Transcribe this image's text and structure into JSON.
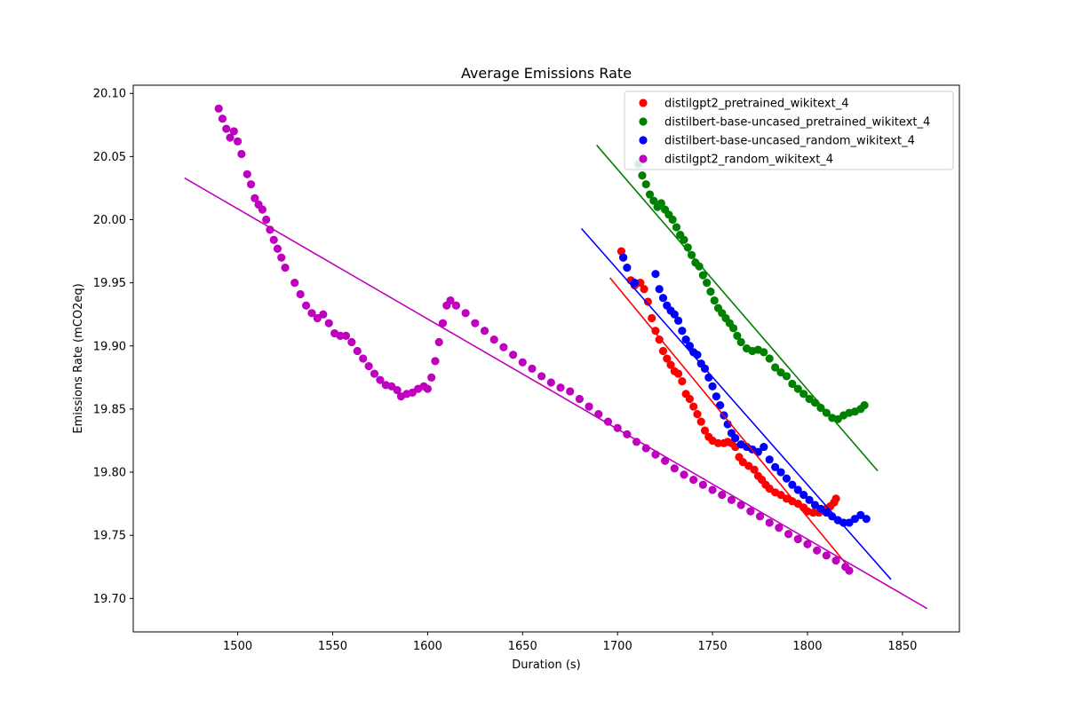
{
  "chart_data": {
    "type": "scatter",
    "title": "Average Emissions Rate",
    "xlabel": "Duration (s)",
    "ylabel": "Emissions Rate (mCO2eq)",
    "xlim": [
      1445,
      1880
    ],
    "ylim": [
      19.6735,
      20.1065
    ],
    "xticks": [
      1500,
      1550,
      1600,
      1650,
      1700,
      1750,
      1800,
      1850
    ],
    "yticks": [
      19.7,
      19.75,
      19.8,
      19.85,
      19.9,
      19.95,
      20.0,
      20.05,
      20.1
    ],
    "legend_position": "top-right",
    "grid": false,
    "series": [
      {
        "name": "distilgpt2_pretrained_wikitext_4",
        "color": "#ff0000",
        "points": [
          [
            1702,
            19.975
          ],
          [
            1703,
            19.97
          ],
          [
            1707,
            19.952
          ],
          [
            1709,
            19.948
          ],
          [
            1712,
            19.95
          ],
          [
            1714,
            19.945
          ],
          [
            1716,
            19.935
          ],
          [
            1718,
            19.922
          ],
          [
            1720,
            19.912
          ],
          [
            1722,
            19.905
          ],
          [
            1724,
            19.896
          ],
          [
            1726,
            19.89
          ],
          [
            1728,
            19.885
          ],
          [
            1730,
            19.88
          ],
          [
            1732,
            19.878
          ],
          [
            1734,
            19.872
          ],
          [
            1736,
            19.862
          ],
          [
            1738,
            19.858
          ],
          [
            1740,
            19.852
          ],
          [
            1742,
            19.846
          ],
          [
            1744,
            19.84
          ],
          [
            1746,
            19.833
          ],
          [
            1748,
            19.828
          ],
          [
            1750,
            19.825
          ],
          [
            1753,
            19.823
          ],
          [
            1756,
            19.823
          ],
          [
            1758,
            19.824
          ],
          [
            1760,
            19.823
          ],
          [
            1762,
            19.82
          ],
          [
            1764,
            19.812
          ],
          [
            1766,
            19.808
          ],
          [
            1769,
            19.805
          ],
          [
            1772,
            19.802
          ],
          [
            1774,
            19.797
          ],
          [
            1776,
            19.794
          ],
          [
            1778,
            19.79
          ],
          [
            1780,
            19.787
          ],
          [
            1783,
            19.784
          ],
          [
            1786,
            19.782
          ],
          [
            1789,
            19.779
          ],
          [
            1792,
            19.777
          ],
          [
            1795,
            19.775
          ],
          [
            1798,
            19.772
          ],
          [
            1800,
            19.769
          ],
          [
            1803,
            19.768
          ],
          [
            1806,
            19.768
          ],
          [
            1808,
            19.77
          ],
          [
            1810,
            19.771
          ],
          [
            1812,
            19.773
          ],
          [
            1814,
            19.776
          ],
          [
            1815,
            19.779
          ]
        ],
        "fit_line": {
          "x": [
            1696,
            1820
          ],
          "y": [
            19.954,
            19.728
          ]
        }
      },
      {
        "name": "distilbert-base-uncased_pretrained_wikitext_4",
        "color": "#008000",
        "points": [
          [
            1711,
            20.044
          ],
          [
            1713,
            20.035
          ],
          [
            1715,
            20.028
          ],
          [
            1717,
            20.02
          ],
          [
            1719,
            20.015
          ],
          [
            1721,
            20.01
          ],
          [
            1723,
            20.013
          ],
          [
            1725,
            20.008
          ],
          [
            1727,
            20.004
          ],
          [
            1729,
            20.0
          ],
          [
            1731,
            19.994
          ],
          [
            1733,
            19.988
          ],
          [
            1735,
            19.984
          ],
          [
            1737,
            19.978
          ],
          [
            1739,
            19.972
          ],
          [
            1741,
            19.966
          ],
          [
            1743,
            19.963
          ],
          [
            1745,
            19.956
          ],
          [
            1747,
            19.95
          ],
          [
            1749,
            19.943
          ],
          [
            1751,
            19.936
          ],
          [
            1753,
            19.93
          ],
          [
            1755,
            19.926
          ],
          [
            1757,
            19.922
          ],
          [
            1759,
            19.918
          ],
          [
            1761,
            19.914
          ],
          [
            1763,
            19.908
          ],
          [
            1765,
            19.903
          ],
          [
            1768,
            19.898
          ],
          [
            1771,
            19.896
          ],
          [
            1774,
            19.897
          ],
          [
            1777,
            19.895
          ],
          [
            1780,
            19.89
          ],
          [
            1783,
            19.883
          ],
          [
            1786,
            19.879
          ],
          [
            1789,
            19.876
          ],
          [
            1792,
            19.87
          ],
          [
            1795,
            19.866
          ],
          [
            1798,
            19.862
          ],
          [
            1801,
            19.858
          ],
          [
            1804,
            19.855
          ],
          [
            1807,
            19.851
          ],
          [
            1810,
            19.847
          ],
          [
            1813,
            19.843
          ],
          [
            1816,
            19.842
          ],
          [
            1819,
            19.845
          ],
          [
            1822,
            19.847
          ],
          [
            1825,
            19.848
          ],
          [
            1828,
            19.85
          ],
          [
            1830,
            19.853
          ]
        ],
        "fit_line": {
          "x": [
            1689,
            1837
          ],
          "y": [
            20.059,
            19.801
          ]
        }
      },
      {
        "name": "distilbert-base-uncased_random_wikitext_4",
        "color": "#0000ff",
        "points": [
          [
            1703,
            19.97
          ],
          [
            1705,
            19.962
          ],
          [
            1709,
            19.95
          ],
          [
            1720,
            19.957
          ],
          [
            1722,
            19.945
          ],
          [
            1724,
            19.938
          ],
          [
            1726,
            19.932
          ],
          [
            1728,
            19.928
          ],
          [
            1730,
            19.925
          ],
          [
            1732,
            19.92
          ],
          [
            1734,
            19.912
          ],
          [
            1736,
            19.905
          ],
          [
            1738,
            19.9
          ],
          [
            1740,
            19.895
          ],
          [
            1742,
            19.893
          ],
          [
            1744,
            19.886
          ],
          [
            1746,
            19.882
          ],
          [
            1748,
            19.875
          ],
          [
            1750,
            19.868
          ],
          [
            1752,
            19.86
          ],
          [
            1754,
            19.853
          ],
          [
            1756,
            19.845
          ],
          [
            1758,
            19.838
          ],
          [
            1760,
            19.831
          ],
          [
            1762,
            19.827
          ],
          [
            1765,
            19.822
          ],
          [
            1768,
            19.82
          ],
          [
            1771,
            19.818
          ],
          [
            1774,
            19.816
          ],
          [
            1777,
            19.82
          ],
          [
            1780,
            19.81
          ],
          [
            1783,
            19.804
          ],
          [
            1786,
            19.8
          ],
          [
            1789,
            19.795
          ],
          [
            1792,
            19.79
          ],
          [
            1795,
            19.786
          ],
          [
            1798,
            19.782
          ],
          [
            1801,
            19.778
          ],
          [
            1804,
            19.774
          ],
          [
            1807,
            19.771
          ],
          [
            1810,
            19.768
          ],
          [
            1813,
            19.765
          ],
          [
            1816,
            19.762
          ],
          [
            1819,
            19.76
          ],
          [
            1822,
            19.76
          ],
          [
            1825,
            19.763
          ],
          [
            1828,
            19.766
          ],
          [
            1831,
            19.763
          ]
        ],
        "fit_line": {
          "x": [
            1681,
            1844
          ],
          "y": [
            19.993,
            19.715
          ]
        }
      },
      {
        "name": "distilgpt2_random_wikitext_4",
        "color": "#bf00bf",
        "points": [
          [
            1490,
            20.088
          ],
          [
            1492,
            20.08
          ],
          [
            1494,
            20.072
          ],
          [
            1496,
            20.065
          ],
          [
            1498,
            20.07
          ],
          [
            1500,
            20.062
          ],
          [
            1502,
            20.052
          ],
          [
            1505,
            20.036
          ],
          [
            1507,
            20.028
          ],
          [
            1509,
            20.017
          ],
          [
            1511,
            20.012
          ],
          [
            1513,
            20.008
          ],
          [
            1515,
            20.0
          ],
          [
            1517,
            19.992
          ],
          [
            1519,
            19.984
          ],
          [
            1521,
            19.977
          ],
          [
            1523,
            19.97
          ],
          [
            1525,
            19.962
          ],
          [
            1530,
            19.95
          ],
          [
            1533,
            19.941
          ],
          [
            1536,
            19.932
          ],
          [
            1539,
            19.926
          ],
          [
            1542,
            19.922
          ],
          [
            1545,
            19.925
          ],
          [
            1548,
            19.918
          ],
          [
            1551,
            19.91
          ],
          [
            1554,
            19.908
          ],
          [
            1557,
            19.908
          ],
          [
            1560,
            19.903
          ],
          [
            1563,
            19.896
          ],
          [
            1566,
            19.89
          ],
          [
            1569,
            19.884
          ],
          [
            1572,
            19.878
          ],
          [
            1575,
            19.873
          ],
          [
            1578,
            19.869
          ],
          [
            1581,
            19.868
          ],
          [
            1584,
            19.865
          ],
          [
            1586,
            19.86
          ],
          [
            1589,
            19.862
          ],
          [
            1592,
            19.863
          ],
          [
            1595,
            19.866
          ],
          [
            1598,
            19.868
          ],
          [
            1600,
            19.866
          ],
          [
            1602,
            19.875
          ],
          [
            1604,
            19.888
          ],
          [
            1606,
            19.903
          ],
          [
            1608,
            19.918
          ],
          [
            1610,
            19.932
          ],
          [
            1612,
            19.936
          ],
          [
            1615,
            19.932
          ],
          [
            1620,
            19.926
          ],
          [
            1625,
            19.918
          ],
          [
            1630,
            19.912
          ],
          [
            1635,
            19.905
          ],
          [
            1640,
            19.899
          ],
          [
            1645,
            19.893
          ],
          [
            1650,
            19.887
          ],
          [
            1655,
            19.882
          ],
          [
            1660,
            19.876
          ],
          [
            1665,
            19.871
          ],
          [
            1670,
            19.867
          ],
          [
            1675,
            19.864
          ],
          [
            1680,
            19.858
          ],
          [
            1685,
            19.852
          ],
          [
            1690,
            19.846
          ],
          [
            1695,
            19.84
          ],
          [
            1700,
            19.835
          ],
          [
            1705,
            19.83
          ],
          [
            1710,
            19.824
          ],
          [
            1715,
            19.819
          ],
          [
            1720,
            19.814
          ],
          [
            1725,
            19.809
          ],
          [
            1730,
            19.803
          ],
          [
            1735,
            19.798
          ],
          [
            1740,
            19.794
          ],
          [
            1745,
            19.79
          ],
          [
            1750,
            19.786
          ],
          [
            1755,
            19.782
          ],
          [
            1760,
            19.778
          ],
          [
            1765,
            19.774
          ],
          [
            1770,
            19.769
          ],
          [
            1775,
            19.765
          ],
          [
            1780,
            19.76
          ],
          [
            1785,
            19.756
          ],
          [
            1790,
            19.751
          ],
          [
            1795,
            19.747
          ],
          [
            1800,
            19.743
          ],
          [
            1805,
            19.738
          ],
          [
            1810,
            19.734
          ],
          [
            1815,
            19.73
          ],
          [
            1820,
            19.725
          ],
          [
            1822,
            19.722
          ]
        ],
        "fit_line": {
          "x": [
            1472,
            1863
          ],
          "y": [
            20.033,
            19.692
          ]
        }
      }
    ]
  }
}
